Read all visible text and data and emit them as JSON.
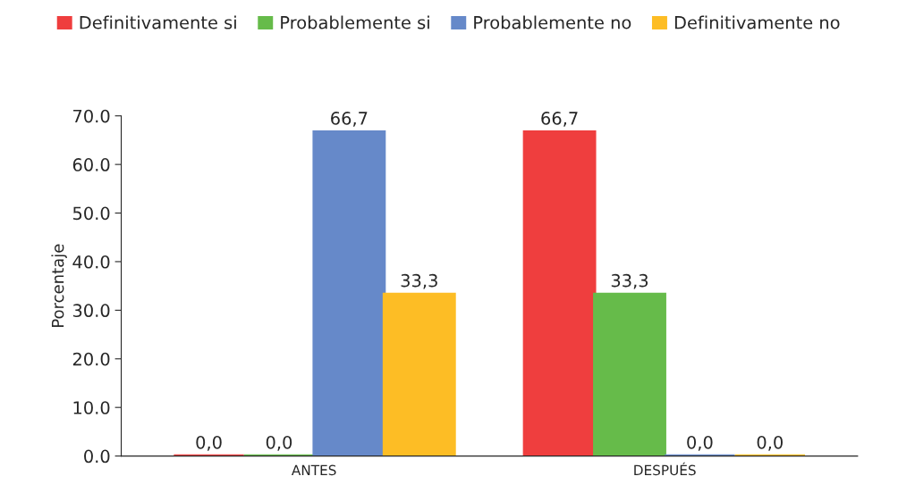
{
  "chart_data": {
    "type": "bar",
    "ylabel": "Porcentaje",
    "categories": [
      "ANTES",
      "DESPUÉS"
    ],
    "series": [
      {
        "name": "Definitivamente si",
        "color": "#ef3e3e",
        "values": [
          0.0,
          66.7
        ],
        "value_labels": [
          "0,0",
          "66,7"
        ]
      },
      {
        "name": "Probablemente si",
        "color": "#66bb4a",
        "values": [
          0.0,
          33.3
        ],
        "value_labels": [
          "0,0",
          "33,3"
        ]
      },
      {
        "name": "Probablemente no",
        "color": "#6689c9",
        "values": [
          66.7,
          0.0
        ],
        "value_labels": [
          "66,7",
          "0,0"
        ]
      },
      {
        "name": "Definitivamente no",
        "color": "#fdbd25",
        "values": [
          33.3,
          0.0
        ],
        "value_labels": [
          "33,3",
          "0,0"
        ]
      }
    ],
    "ylim": [
      0,
      70
    ],
    "yticks": [
      {
        "value": 0,
        "label": "0.0"
      },
      {
        "value": 10,
        "label": "10.0"
      },
      {
        "value": 20,
        "label": "20.0"
      },
      {
        "value": 30,
        "label": "30.0"
      },
      {
        "value": 40,
        "label": "40.0"
      },
      {
        "value": 50,
        "label": "50.0"
      },
      {
        "value": 60,
        "label": "60.0"
      },
      {
        "value": 70,
        "label": "70.0"
      }
    ],
    "legend": "top",
    "grid": false
  }
}
